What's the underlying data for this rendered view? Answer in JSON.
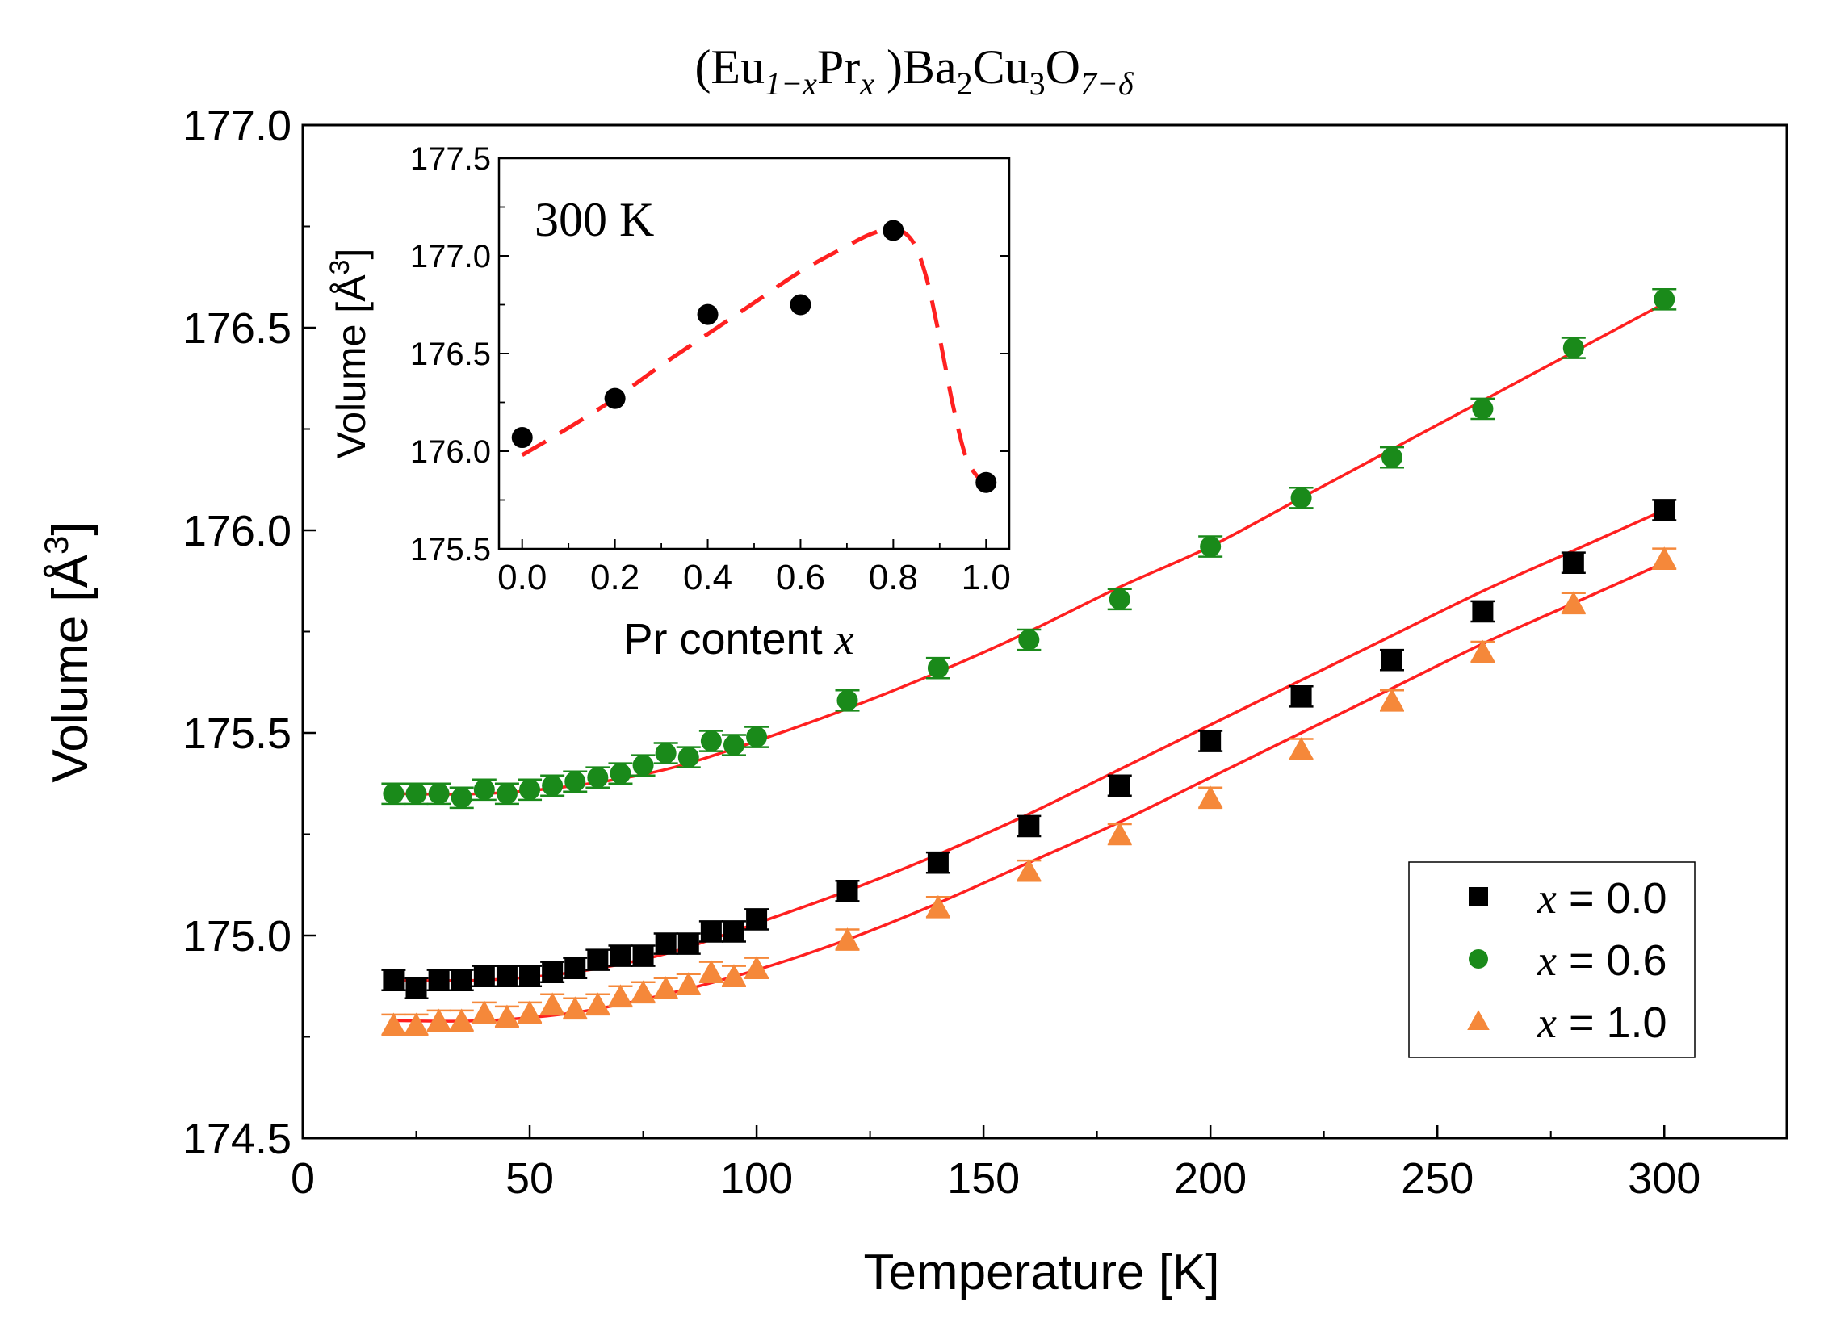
{
  "title": {
    "open": "(Eu",
    "sub1": "1−x",
    "mid1": "Pr",
    "sub2": "x",
    "mid2": " )Ba",
    "sub3": "2",
    "mid3": "Cu",
    "sub4": "3",
    "mid4": "O",
    "sub5": "7−δ"
  },
  "colors": {
    "x00": "#000000",
    "x06": "#1a8a1a",
    "x10": "#f5883a",
    "fit": "#ff2020"
  },
  "chart_data": [
    {
      "type": "scatter",
      "name": "main",
      "xlabel": "Temperature [K]",
      "ylabel_text": "Volume [Å",
      "ylabel_sup": "3",
      "ylabel_close": "]",
      "xlim": [
        0,
        327
      ],
      "ylim": [
        174.5,
        177.0
      ],
      "xticks": [
        0,
        50,
        100,
        150,
        200,
        250,
        300
      ],
      "xtick_labels": [
        "0",
        "50",
        "100",
        "150",
        "200",
        "250",
        "300"
      ],
      "yticks": [
        174.5,
        175.0,
        175.5,
        176.0,
        176.5,
        177.0
      ],
      "ytick_labels": [
        "174.5",
        "175.0",
        "175.5",
        "176.0",
        "176.5",
        "177.0"
      ],
      "legend_position": "lower-right",
      "series": [
        {
          "name": "x = 0.0",
          "legend_var": "x",
          "legend_val": " = 0.0",
          "marker": "square",
          "color_key": "x00",
          "x": [
            20,
            25,
            30,
            35,
            40,
            45,
            50,
            55,
            60,
            65,
            70,
            75,
            80,
            85,
            90,
            95,
            100,
            120,
            140,
            160,
            180,
            200,
            220,
            240,
            260,
            280,
            300
          ],
          "y": [
            174.89,
            174.87,
            174.89,
            174.89,
            174.9,
            174.9,
            174.9,
            174.91,
            174.92,
            174.94,
            174.95,
            174.95,
            174.98,
            174.98,
            175.01,
            175.01,
            175.04,
            175.11,
            175.18,
            175.27,
            175.37,
            175.48,
            175.59,
            175.68,
            175.8,
            175.92,
            176.05
          ],
          "err": 0.025,
          "fit": [
            [
              20,
              174.89
            ],
            [
              40,
              174.89
            ],
            [
              60,
              174.91
            ],
            [
              80,
              174.955
            ],
            [
              100,
              175.03
            ],
            [
              120,
              175.11
            ],
            [
              140,
              175.2
            ],
            [
              160,
              175.3
            ],
            [
              180,
              175.41
            ],
            [
              200,
              175.52
            ],
            [
              220,
              175.63
            ],
            [
              240,
              175.74
            ],
            [
              260,
              175.85
            ],
            [
              280,
              175.95
            ],
            [
              300,
              176.05
            ]
          ]
        },
        {
          "name": "x = 0.6",
          "legend_var": "x",
          "legend_val": " = 0.6",
          "marker": "circle",
          "color_key": "x06",
          "x": [
            20,
            25,
            30,
            35,
            40,
            45,
            50,
            55,
            60,
            65,
            70,
            75,
            80,
            85,
            90,
            95,
            100,
            120,
            140,
            160,
            180,
            200,
            220,
            240,
            260,
            280,
            300
          ],
          "y": [
            175.35,
            175.35,
            175.35,
            175.34,
            175.36,
            175.35,
            175.36,
            175.37,
            175.38,
            175.39,
            175.4,
            175.42,
            175.45,
            175.44,
            175.48,
            175.47,
            175.49,
            175.58,
            175.66,
            175.73,
            175.83,
            175.96,
            176.08,
            176.18,
            176.3,
            176.45,
            176.57
          ],
          "err": 0.025,
          "fit": [
            [
              20,
              175.35
            ],
            [
              40,
              175.35
            ],
            [
              60,
              175.37
            ],
            [
              80,
              175.41
            ],
            [
              100,
              175.48
            ],
            [
              120,
              175.56
            ],
            [
              140,
              175.65
            ],
            [
              160,
              175.75
            ],
            [
              180,
              175.86
            ],
            [
              200,
              175.96
            ],
            [
              220,
              176.08
            ],
            [
              240,
              176.2
            ],
            [
              260,
              176.32
            ],
            [
              280,
              176.44
            ],
            [
              300,
              176.56
            ]
          ]
        },
        {
          "name": "x = 1.0",
          "legend_var": "x",
          "legend_val": " = 1.0",
          "marker": "triangle",
          "color_key": "x10",
          "x": [
            20,
            25,
            30,
            35,
            40,
            45,
            50,
            55,
            60,
            65,
            70,
            75,
            80,
            85,
            90,
            95,
            100,
            120,
            140,
            160,
            180,
            200,
            220,
            240,
            260,
            280,
            300
          ],
          "y": [
            174.78,
            174.78,
            174.79,
            174.79,
            174.81,
            174.8,
            174.81,
            174.83,
            174.82,
            174.83,
            174.85,
            174.86,
            174.87,
            174.88,
            174.91,
            174.9,
            174.92,
            174.99,
            175.07,
            175.16,
            175.25,
            175.34,
            175.46,
            175.58,
            175.7,
            175.82,
            175.93
          ],
          "err": 0.025,
          "fit": [
            [
              20,
              174.79
            ],
            [
              40,
              174.79
            ],
            [
              60,
              174.81
            ],
            [
              80,
              174.855
            ],
            [
              100,
              174.915
            ],
            [
              120,
              174.99
            ],
            [
              140,
              175.08
            ],
            [
              160,
              175.18
            ],
            [
              180,
              175.28
            ],
            [
              200,
              175.39
            ],
            [
              220,
              175.5
            ],
            [
              240,
              175.61
            ],
            [
              260,
              175.72
            ],
            [
              280,
              175.82
            ],
            [
              300,
              175.92
            ]
          ]
        }
      ]
    },
    {
      "type": "scatter",
      "name": "inset",
      "annotation": "300 K",
      "xlabel_text": "Pr content ",
      "xlabel_var": "x",
      "ylabel_text": "Volume [Å",
      "ylabel_sup": "3",
      "ylabel_close": "]",
      "xlim": [
        -0.05,
        1.05
      ],
      "ylim": [
        175.5,
        177.5
      ],
      "xticks": [
        0.0,
        0.2,
        0.4,
        0.6,
        0.8,
        1.0
      ],
      "xtick_labels": [
        "0.0",
        "0.2",
        "0.4",
        "0.6",
        "0.8",
        "1.0"
      ],
      "yticks": [
        175.5,
        176.0,
        176.5,
        177.0,
        177.5
      ],
      "ytick_labels": [
        "175.5",
        "176.0",
        "176.5",
        "177.0",
        "177.5"
      ],
      "points": {
        "x": [
          0.0,
          0.2,
          0.4,
          0.6,
          0.8,
          1.0
        ],
        "y": [
          176.07,
          176.27,
          176.7,
          176.75,
          177.13,
          175.84
        ]
      },
      "guide_line": [
        [
          0.0,
          175.98
        ],
        [
          0.1,
          176.12
        ],
        [
          0.2,
          176.27
        ],
        [
          0.3,
          176.44
        ],
        [
          0.4,
          176.6
        ],
        [
          0.5,
          176.76
        ],
        [
          0.6,
          176.92
        ],
        [
          0.7,
          177.05
        ],
        [
          0.75,
          177.11
        ],
        [
          0.8,
          177.14
        ],
        [
          0.84,
          177.08
        ],
        [
          0.87,
          176.9
        ],
        [
          0.9,
          176.58
        ],
        [
          0.93,
          176.22
        ],
        [
          0.96,
          175.95
        ],
        [
          1.0,
          175.82
        ]
      ]
    }
  ]
}
